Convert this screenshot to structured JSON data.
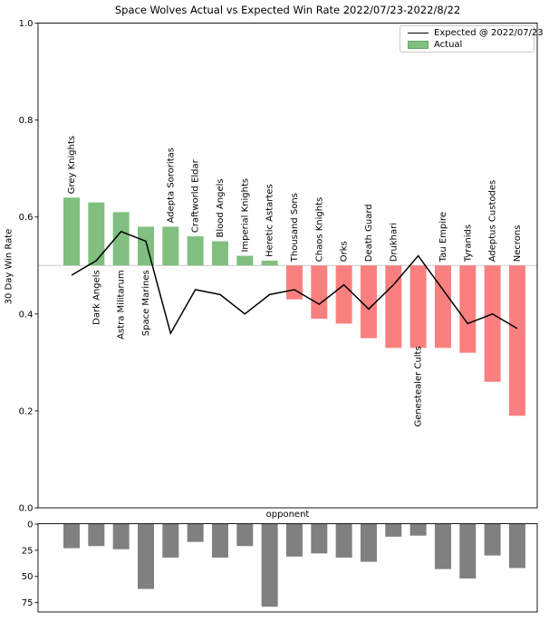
{
  "chart_data": {
    "type": "bar",
    "title": "Space Wolves Actual vs Expected Win Rate 2022/07/23-2022/8/22",
    "ylabel": "30 Day Win Rate",
    "xlabel": "opponent",
    "legend_position": "upper right",
    "legend": [
      {
        "label": "Expected @ 2022/07/23",
        "swatch": "line"
      },
      {
        "label": "Actual",
        "swatch": "patch"
      }
    ],
    "categories": [
      "Grey Knights",
      "Dark Angels",
      "Astra Militarum",
      "Space Marines",
      "Adepta Sororitas",
      "Craftworld Eldar",
      "Blood Angels",
      "Imperial Knights",
      "Heretic Astartes",
      "Thousand Sons",
      "Chaos Knights",
      "Orks",
      "Death Guard",
      "Drukhari",
      "Genestealer Cults",
      "Tau Empire",
      "Tyranids",
      "Adeptus Custodes",
      "Necrons"
    ],
    "main": {
      "ylim": [
        0.0,
        1.0
      ],
      "yticks": [
        "0.0",
        "0.2",
        "0.4",
        "0.6",
        "0.8",
        "1.0"
      ],
      "baseline": 0.5,
      "grid": false,
      "series": [
        {
          "name": "Actual",
          "type": "bar",
          "values": [
            0.64,
            0.63,
            0.61,
            0.58,
            0.58,
            0.56,
            0.55,
            0.52,
            0.51,
            0.43,
            0.39,
            0.38,
            0.35,
            0.33,
            0.33,
            0.33,
            0.32,
            0.26,
            0.19
          ]
        },
        {
          "name": "Expected @ 2022/07/23",
          "type": "line",
          "values": [
            0.48,
            0.51,
            0.57,
            0.55,
            0.36,
            0.45,
            0.44,
            0.4,
            0.44,
            0.45,
            0.42,
            0.46,
            0.41,
            0.46,
            0.52,
            0.45,
            0.38,
            0.4,
            0.37
          ]
        }
      ],
      "label_side": [
        "above_bar",
        "below_base",
        "below_base",
        "below_base",
        "above_bar",
        "above_bar",
        "above_bar",
        "above_bar",
        "above_bar",
        "above_base",
        "above_base",
        "above_base",
        "above_base",
        "above_base",
        "below_bar",
        "above_base",
        "above_base",
        "above_base",
        "above_base"
      ]
    },
    "games": {
      "type": "bar",
      "inverted_axis": true,
      "yticks": [
        "0",
        "25",
        "50",
        "75"
      ],
      "values": [
        23,
        21,
        24,
        62,
        32,
        17,
        32,
        21,
        79,
        31,
        28,
        32,
        36,
        12,
        11,
        43,
        52,
        30,
        42
      ]
    },
    "colors": {
      "actual_above": "#80bf80",
      "actual_below": "#fa8080",
      "patch_edge": "#66a868",
      "expected_line": "#000000",
      "games_bar": "#808080",
      "baseline_line": "#c9c9c9",
      "spine": "#000000"
    }
  }
}
